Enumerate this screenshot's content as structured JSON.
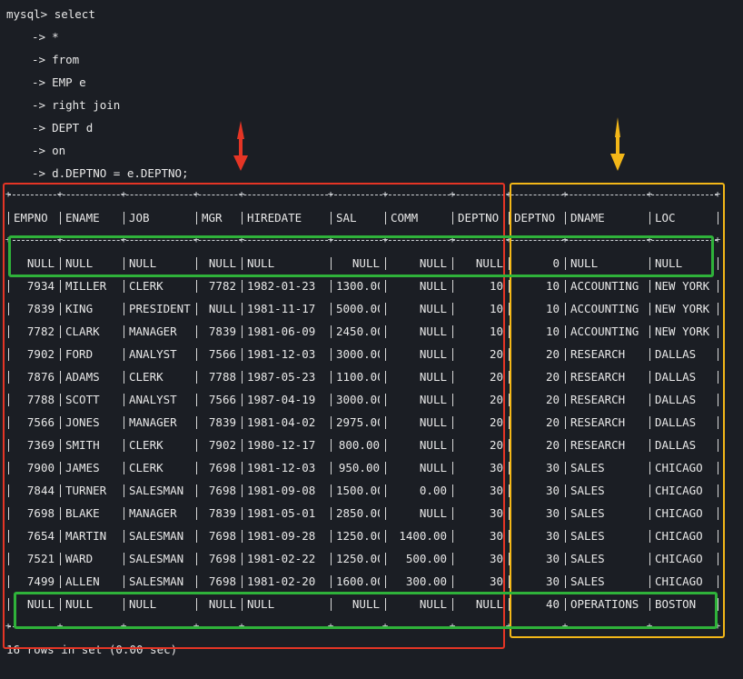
{
  "terminal": {
    "prompt": "mysql>",
    "command_first": "select",
    "continuation_prefix": "->",
    "continuation_lines": [
      "*",
      "from",
      "EMP e",
      "right join",
      "DEPT d",
      "on",
      "d.DEPTNO = e.DEPTNO;"
    ]
  },
  "table": {
    "columns": [
      "EMPNO",
      "ENAME",
      "JOB",
      "MGR",
      "HIREDATE",
      "SAL",
      "COMM",
      "DEPTNO",
      "DEPTNO",
      "DNAME",
      "LOC"
    ],
    "rows": [
      [
        "NULL",
        "NULL",
        "NULL",
        "NULL",
        "NULL",
        "NULL",
        "NULL",
        "NULL",
        "0",
        "NULL",
        "NULL"
      ],
      [
        "7934",
        "MILLER",
        "CLERK",
        "7782",
        "1982-01-23",
        "1300.00",
        "NULL",
        "10",
        "10",
        "ACCOUNTING",
        "NEW YORK"
      ],
      [
        "7839",
        "KING",
        "PRESIDENT",
        "NULL",
        "1981-11-17",
        "5000.00",
        "NULL",
        "10",
        "10",
        "ACCOUNTING",
        "NEW YORK"
      ],
      [
        "7782",
        "CLARK",
        "MANAGER",
        "7839",
        "1981-06-09",
        "2450.00",
        "NULL",
        "10",
        "10",
        "ACCOUNTING",
        "NEW YORK"
      ],
      [
        "7902",
        "FORD",
        "ANALYST",
        "7566",
        "1981-12-03",
        "3000.00",
        "NULL",
        "20",
        "20",
        "RESEARCH",
        "DALLAS"
      ],
      [
        "7876",
        "ADAMS",
        "CLERK",
        "7788",
        "1987-05-23",
        "1100.00",
        "NULL",
        "20",
        "20",
        "RESEARCH",
        "DALLAS"
      ],
      [
        "7788",
        "SCOTT",
        "ANALYST",
        "7566",
        "1987-04-19",
        "3000.00",
        "NULL",
        "20",
        "20",
        "RESEARCH",
        "DALLAS"
      ],
      [
        "7566",
        "JONES",
        "MANAGER",
        "7839",
        "1981-04-02",
        "2975.00",
        "NULL",
        "20",
        "20",
        "RESEARCH",
        "DALLAS"
      ],
      [
        "7369",
        "SMITH",
        "CLERK",
        "7902",
        "1980-12-17",
        "800.00",
        "NULL",
        "20",
        "20",
        "RESEARCH",
        "DALLAS"
      ],
      [
        "7900",
        "JAMES",
        "CLERK",
        "7698",
        "1981-12-03",
        "950.00",
        "NULL",
        "30",
        "30",
        "SALES",
        "CHICAGO"
      ],
      [
        "7844",
        "TURNER",
        "SALESMAN",
        "7698",
        "1981-09-08",
        "1500.00",
        "0.00",
        "30",
        "30",
        "SALES",
        "CHICAGO"
      ],
      [
        "7698",
        "BLAKE",
        "MANAGER",
        "7839",
        "1981-05-01",
        "2850.00",
        "NULL",
        "30",
        "30",
        "SALES",
        "CHICAGO"
      ],
      [
        "7654",
        "MARTIN",
        "SALESMAN",
        "7698",
        "1981-09-28",
        "1250.00",
        "1400.00",
        "30",
        "30",
        "SALES",
        "CHICAGO"
      ],
      [
        "7521",
        "WARD",
        "SALESMAN",
        "7698",
        "1981-02-22",
        "1250.00",
        "500.00",
        "30",
        "30",
        "SALES",
        "CHICAGO"
      ],
      [
        "7499",
        "ALLEN",
        "SALESMAN",
        "7698",
        "1981-02-20",
        "1600.00",
        "300.00",
        "30",
        "30",
        "SALES",
        "CHICAGO"
      ],
      [
        "NULL",
        "NULL",
        "NULL",
        "NULL",
        "NULL",
        "NULL",
        "NULL",
        "NULL",
        "40",
        "OPERATIONS",
        "BOSTON"
      ]
    ],
    "footer": "16 rows in set (0.00 sec)"
  },
  "annotations": {
    "left_box_color": "#e53525",
    "right_box_color": "#f3b718",
    "highlight_row_color": "#2fb23a",
    "red_arrow_color": "#e53525",
    "yellow_arrow_color": "#f3b718"
  }
}
